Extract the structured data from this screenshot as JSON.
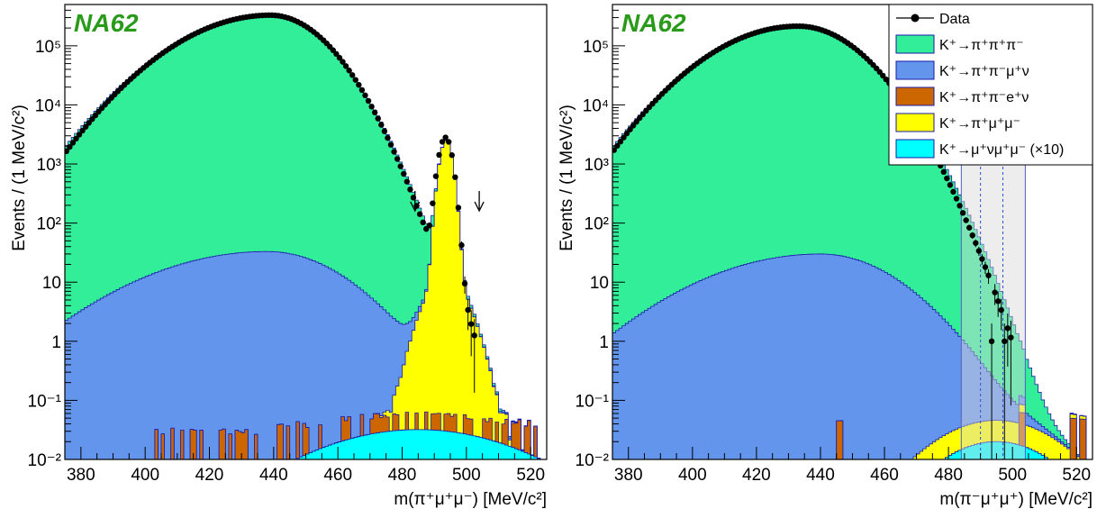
{
  "chart_data": [
    {
      "type": "histogram",
      "experiment_label": "NA62",
      "xlabel": "m(π⁺μ⁺μ⁻) [MeV/c²]",
      "ylabel": "Events / (1 MeV/c²)",
      "xlim": [
        375,
        525
      ],
      "ylim": [
        0.01,
        500000
      ],
      "log_y": true,
      "x_ticks": [
        "380",
        "400",
        "420",
        "440",
        "460",
        "480",
        "500",
        "520"
      ],
      "y_ticks": [
        "10⁻²",
        "10⁻¹",
        "1",
        "10",
        "10²",
        "10³",
        "10⁴",
        "10⁵"
      ],
      "signal_region_arrows": [
        484,
        504
      ],
      "series": [
        {
          "name": "K⁺→π⁺π⁺π⁻",
          "color": "#33ee99",
          "peak_x": 439,
          "peak_y": 320000
        },
        {
          "name": "K⁺→π⁺π⁻μ⁺ν",
          "color": "#6495ed",
          "peak_x": 438,
          "peak_y": 33
        },
        {
          "name": "K⁺→π⁺π⁻e⁺ν",
          "color": "#cc6600",
          "level_y": 0.035
        },
        {
          "name": "K⁺→π⁺μ⁺μ⁻",
          "color": "#ffff00",
          "peak_x": 493.7,
          "peak_y": 2500
        },
        {
          "name": "K⁺→μ⁺νμ⁺μ⁻ (×10)",
          "color": "#00ffff",
          "peak_x": 485,
          "peak_y": 0.032
        }
      ],
      "data_points": {
        "name": "Data",
        "peak_x": 439,
        "peak_y": 330000,
        "signal_peak_x": 493.5,
        "signal_peak_y": 2800
      }
    },
    {
      "type": "histogram",
      "experiment_label": "NA62",
      "xlabel": "m(π⁻μ⁺μ⁺) [MeV/c²]",
      "ylabel": "Events / (1 MeV/c²)",
      "xlim": [
        375,
        525
      ],
      "ylim": [
        0.01,
        500000
      ],
      "log_y": true,
      "x_ticks": [
        "380",
        "400",
        "420",
        "440",
        "460",
        "480",
        "500",
        "520"
      ],
      "y_ticks": [
        "10⁻²",
        "10⁻¹",
        "1",
        "10",
        "10²",
        "10³",
        "10⁴",
        "10⁵"
      ],
      "signal_region": [
        484,
        504
      ],
      "signal_region_inner_lines": [
        490,
        497
      ],
      "legend": {
        "position": "top-right",
        "entries": [
          {
            "label": "Data",
            "style": "marker"
          },
          {
            "label": "K⁺→π⁺π⁺π⁻",
            "color": "#33ee99"
          },
          {
            "label": "K⁺→π⁺π⁻μ⁺ν",
            "color": "#6495ed"
          },
          {
            "label": "K⁺→π⁺π⁻e⁺ν",
            "color": "#cc6600"
          },
          {
            "label": "K⁺→π⁺μ⁺μ⁻",
            "color": "#ffff00"
          },
          {
            "label": "K⁺→μ⁺νμ⁺μ⁻ (×10)",
            "color": "#00ffff"
          }
        ]
      },
      "series": [
        {
          "name": "K⁺→π⁺π⁺π⁻",
          "color": "#33ee99",
          "peak_x": 433,
          "peak_y": 200000
        },
        {
          "name": "K⁺→π⁺π⁻μ⁺ν",
          "color": "#6495ed",
          "peak_x": 440,
          "peak_y": 30
        },
        {
          "name": "K⁺→π⁺π⁻e⁺ν",
          "color": "#cc6600",
          "sparse": true
        },
        {
          "name": "K⁺→π⁺μ⁺μ⁻",
          "color": "#ffff00",
          "peak_x": 495,
          "peak_y": 0.026
        },
        {
          "name": "K⁺→μ⁺νμ⁺μ⁻ (×10)",
          "color": "#00ffff",
          "peak_x": 495,
          "peak_y": 0.02
        }
      ],
      "data_points": {
        "name": "Data",
        "peak_x": 433,
        "peak_y": 215000
      }
    }
  ]
}
